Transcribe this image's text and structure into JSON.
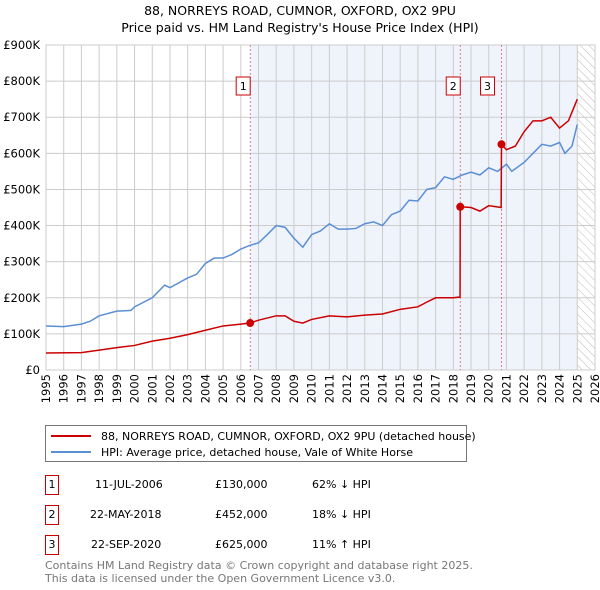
{
  "chart_data": {
    "type": "line",
    "title": "88, NORREYS ROAD, CUMNOR, OXFORD, OX2 9PU",
    "subtitle": "Price paid vs. HM Land Registry's House Price Index (HPI)",
    "xlim": [
      1995,
      2026
    ],
    "ylim": [
      0,
      900000
    ],
    "x_ticks": [
      "1995",
      "1996",
      "1997",
      "1998",
      "1999",
      "2000",
      "2001",
      "2002",
      "2003",
      "2004",
      "2005",
      "2006",
      "2007",
      "2008",
      "2009",
      "2010",
      "2011",
      "2012",
      "2013",
      "2014",
      "2015",
      "2016",
      "2017",
      "2018",
      "2019",
      "2020",
      "2021",
      "2022",
      "2023",
      "2024",
      "2025",
      "2026"
    ],
    "y_ticks": [
      {
        "v": 0,
        "label": "£0"
      },
      {
        "v": 100000,
        "label": "£100K"
      },
      {
        "v": 200000,
        "label": "£200K"
      },
      {
        "v": 300000,
        "label": "£300K"
      },
      {
        "v": 400000,
        "label": "£400K"
      },
      {
        "v": 500000,
        "label": "£500K"
      },
      {
        "v": 600000,
        "label": "£600K"
      },
      {
        "v": 700000,
        "label": "£700K"
      },
      {
        "v": 800000,
        "label": "£800K"
      },
      {
        "v": 900000,
        "label": "£900K"
      }
    ],
    "grid": true,
    "shaded_range": [
      2006.53,
      2025.0
    ],
    "forecast_hatch_from": 2025.0,
    "series": [
      {
        "name": "88, NORREYS ROAD, CUMNOR, OXFORD, OX2 9PU (detached house)",
        "color": "#cc0000",
        "points": [
          [
            1995,
            47
          ],
          [
            1997,
            48
          ],
          [
            1998,
            55
          ],
          [
            1999,
            62
          ],
          [
            2000,
            68
          ],
          [
            2001,
            80
          ],
          [
            2002,
            88
          ],
          [
            2003,
            98
          ],
          [
            2004,
            110
          ],
          [
            2005,
            122
          ],
          [
            2006,
            127
          ],
          [
            2006.53,
            130
          ],
          [
            2007,
            138
          ],
          [
            2008,
            150
          ],
          [
            2008.5,
            150
          ],
          [
            2009,
            135
          ],
          [
            2009.5,
            130
          ],
          [
            2010,
            140
          ],
          [
            2011,
            150
          ],
          [
            2012,
            147
          ],
          [
            2013,
            152
          ],
          [
            2014,
            155
          ],
          [
            2015,
            168
          ],
          [
            2016,
            175
          ],
          [
            2016.5,
            188
          ],
          [
            2017,
            200
          ],
          [
            2018,
            200
          ],
          [
            2018.38,
            202
          ],
          [
            2018.39,
            452
          ],
          [
            2019,
            450
          ],
          [
            2019.5,
            440
          ],
          [
            2020,
            455
          ],
          [
            2020.7,
            450
          ],
          [
            2020.72,
            625
          ],
          [
            2021,
            610
          ],
          [
            2021.5,
            620
          ],
          [
            2022,
            660
          ],
          [
            2022.5,
            690
          ],
          [
            2023,
            690
          ],
          [
            2023.5,
            700
          ],
          [
            2024,
            670
          ],
          [
            2024.5,
            690
          ],
          [
            2025,
            750
          ]
        ]
      },
      {
        "name": "HPI: Average price, detached house, Vale of White Horse",
        "color": "#5b8fd4",
        "points": [
          [
            1995,
            122
          ],
          [
            1996,
            120
          ],
          [
            1997,
            127
          ],
          [
            1997.5,
            135
          ],
          [
            1998,
            150
          ],
          [
            1999,
            163
          ],
          [
            1999.8,
            165
          ],
          [
            2000,
            175
          ],
          [
            2001,
            200
          ],
          [
            2001.7,
            235
          ],
          [
            2002,
            228
          ],
          [
            2003,
            255
          ],
          [
            2003.5,
            265
          ],
          [
            2004,
            295
          ],
          [
            2004.5,
            310
          ],
          [
            2005,
            310
          ],
          [
            2005.5,
            320
          ],
          [
            2006,
            335
          ],
          [
            2006.5,
            345
          ],
          [
            2007,
            352
          ],
          [
            2007.5,
            375
          ],
          [
            2008,
            400
          ],
          [
            2008.5,
            395
          ],
          [
            2009,
            365
          ],
          [
            2009.5,
            340
          ],
          [
            2010,
            375
          ],
          [
            2010.5,
            385
          ],
          [
            2011,
            405
          ],
          [
            2011.5,
            390
          ],
          [
            2012,
            390
          ],
          [
            2012.5,
            392
          ],
          [
            2013,
            405
          ],
          [
            2013.5,
            410
          ],
          [
            2014,
            400
          ],
          [
            2014.5,
            430
          ],
          [
            2015,
            440
          ],
          [
            2015.5,
            470
          ],
          [
            2016,
            468
          ],
          [
            2016.5,
            500
          ],
          [
            2017,
            505
          ],
          [
            2017.5,
            535
          ],
          [
            2018,
            528
          ],
          [
            2018.5,
            540
          ],
          [
            2019,
            548
          ],
          [
            2019.5,
            540
          ],
          [
            2020,
            560
          ],
          [
            2020.5,
            550
          ],
          [
            2021,
            570
          ],
          [
            2021.3,
            550
          ],
          [
            2022,
            575
          ],
          [
            2022.5,
            600
          ],
          [
            2023,
            625
          ],
          [
            2023.5,
            620
          ],
          [
            2024,
            630
          ],
          [
            2024.3,
            600
          ],
          [
            2024.7,
            620
          ],
          [
            2025,
            680
          ]
        ]
      }
    ],
    "sales": [
      {
        "label": "1",
        "x": 2006.53,
        "y": 130
      },
      {
        "label": "2",
        "x": 2018.39,
        "y": 452
      },
      {
        "label": "3",
        "x": 2020.72,
        "y": 625
      }
    ]
  },
  "legend": {
    "red": "88, NORREYS ROAD, CUMNOR, OXFORD, OX2 9PU (detached house)",
    "blue": "HPI: Average price, detached house, Vale of White Horse"
  },
  "transactions": [
    {
      "n": "1",
      "date": "11-JUL-2006",
      "price": "£130,000",
      "hpi": "62% ↓ HPI"
    },
    {
      "n": "2",
      "date": "22-MAY-2018",
      "price": "£452,000",
      "hpi": "18% ↓ HPI"
    },
    {
      "n": "3",
      "date": "22-SEP-2020",
      "price": "£625,000",
      "hpi": "11% ↑ HPI"
    }
  ],
  "footer": {
    "line1": "Contains HM Land Registry data © Crown copyright and database right 2025.",
    "line2": "This data is licensed under the Open Government Licence v3.0."
  }
}
